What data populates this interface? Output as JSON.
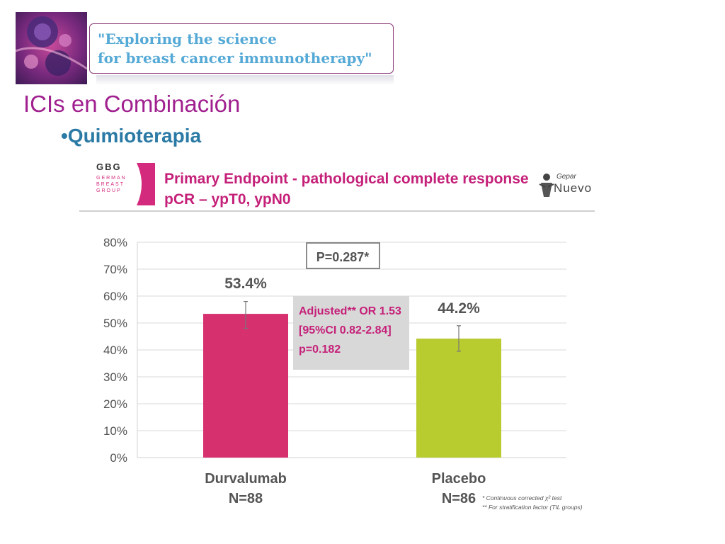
{
  "header": {
    "banner_text": "\"Exploring the science\nfor breast cancer immunotherapy\"",
    "title": "ICIs en Combinación",
    "bullet": "•Quimioterapia"
  },
  "figure": {
    "logo_main": "GBG",
    "logo_sub": [
      "GERMAN",
      "BREAST",
      "GROUP"
    ],
    "title": "Primary Endpoint - pathological complete response\npCR – ypT0, ypN0",
    "partner_logo_small": "Gepar",
    "partner_logo_big": "Nuevo",
    "footnotes": "* Continuous corrected χ² test\n** For stratification factor (TIL groups)"
  },
  "chart_data": {
    "type": "bar",
    "categories": [
      "Durvalumab",
      "Placebo"
    ],
    "category_sublabels": [
      "N=88",
      "N=86"
    ],
    "values": [
      53.4,
      44.2
    ],
    "data_labels": [
      "53.4%",
      "44.2%"
    ],
    "error_bars": [
      [
        48,
        58
      ],
      [
        39.5,
        49
      ]
    ],
    "colors": [
      "#d6306f",
      "#b8cc30"
    ],
    "ylim": [
      0,
      80
    ],
    "yticks": [
      "0%",
      "10%",
      "20%",
      "30%",
      "40%",
      "50%",
      "60%",
      "70%",
      "80%"
    ],
    "grid": true,
    "annotations": {
      "pvalue": "P=0.287*",
      "adjusted": [
        "Adjusted** OR 1.53",
        "[95%CI 0.82-2.84]",
        "p=0.182"
      ]
    }
  },
  "colors": {
    "title": "#a0208f",
    "bullet": "#2b7aa5",
    "accent": "#c52079",
    "banner_text": "#55a9d6"
  }
}
